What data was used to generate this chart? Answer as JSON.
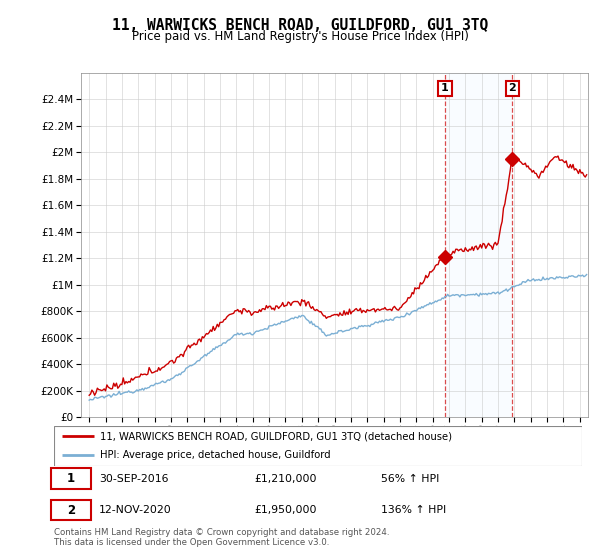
{
  "title": "11, WARWICKS BENCH ROAD, GUILDFORD, GU1 3TQ",
  "subtitle": "Price paid vs. HM Land Registry's House Price Index (HPI)",
  "legend_line1": "11, WARWICKS BENCH ROAD, GUILDFORD, GU1 3TQ (detached house)",
  "legend_line2": "HPI: Average price, detached house, Guildford",
  "annotation1_date": "30-SEP-2016",
  "annotation1_price": "£1,210,000",
  "annotation1_pct": "56% ↑ HPI",
  "annotation2_date": "12-NOV-2020",
  "annotation2_price": "£1,950,000",
  "annotation2_pct": "136% ↑ HPI",
  "footnote": "Contains HM Land Registry data © Crown copyright and database right 2024.\nThis data is licensed under the Open Government Licence v3.0.",
  "red_color": "#cc0000",
  "blue_color": "#7bafd4",
  "shade_color": "#ddeeff",
  "sale1_year": 2016.75,
  "sale1_price": 1210000,
  "sale2_year": 2020.87,
  "sale2_price": 1950000,
  "ylim_max": 2600000,
  "xlim_start": 1994.5,
  "xlim_end": 2025.5
}
